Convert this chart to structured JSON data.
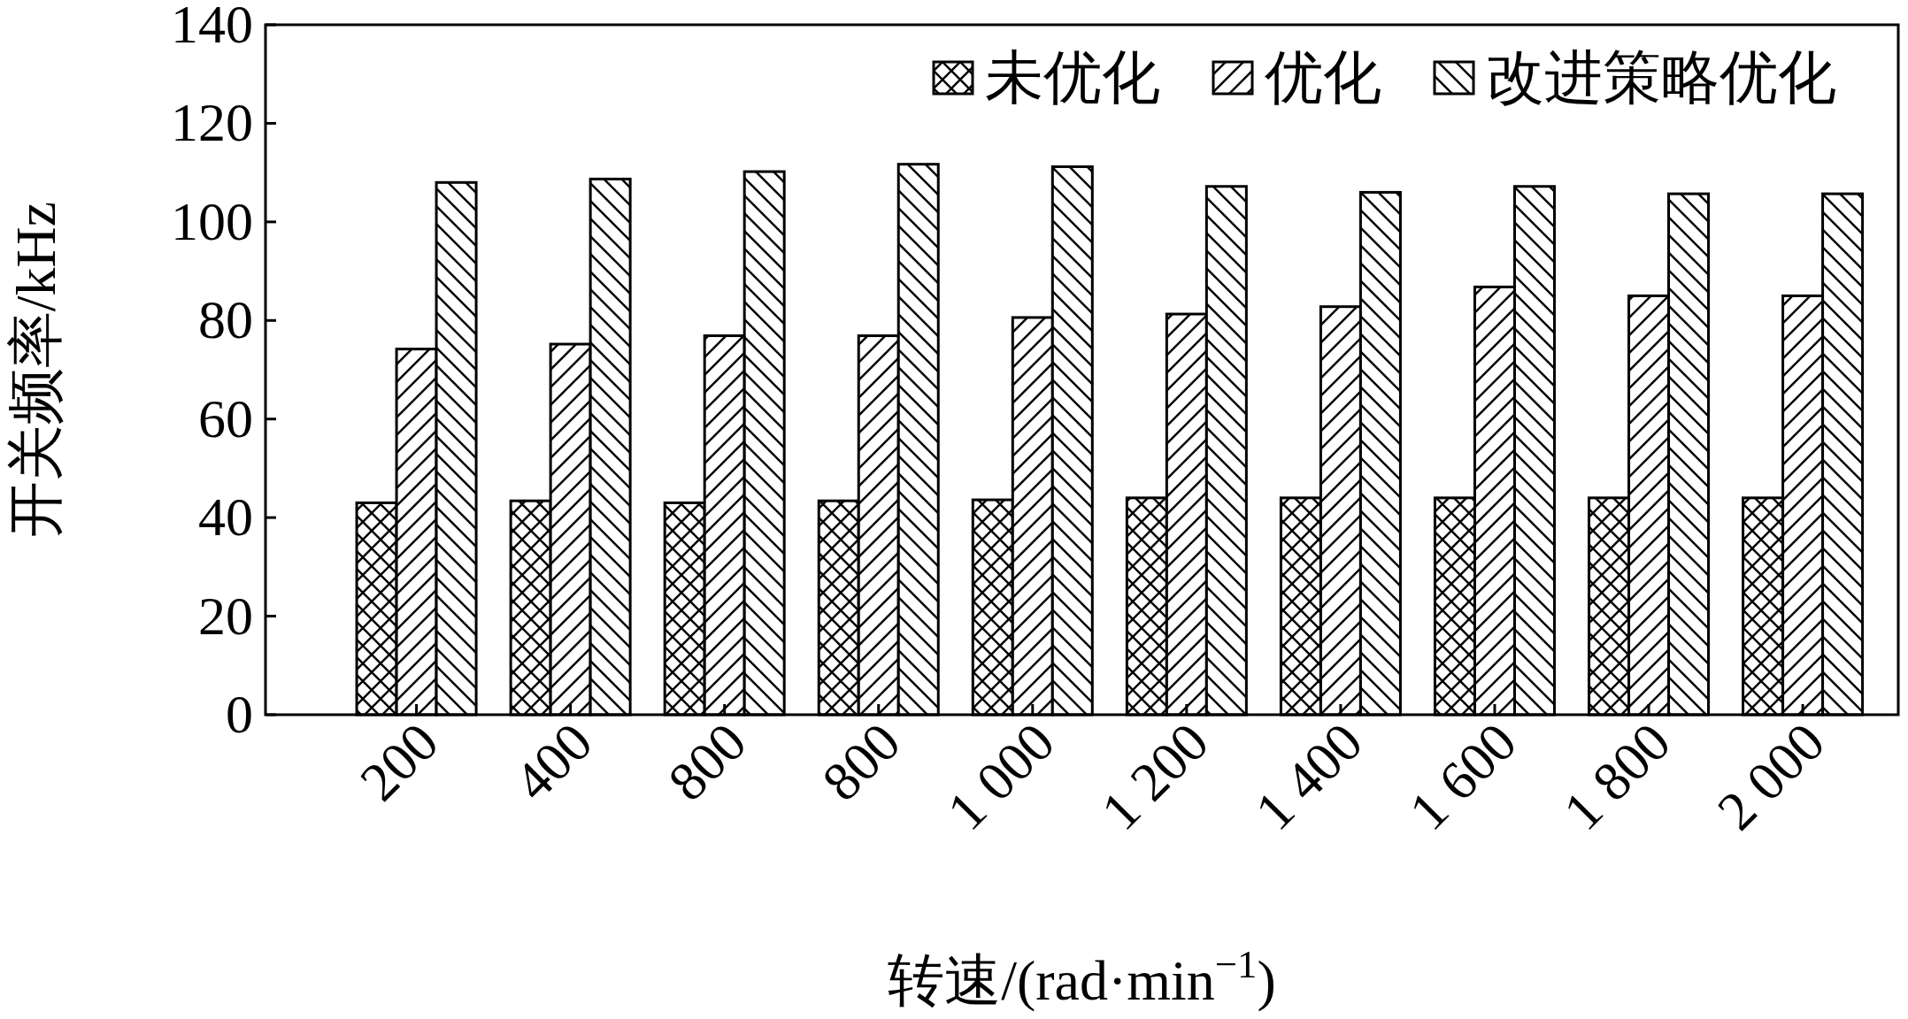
{
  "chart_data": {
    "type": "bar",
    "xlabel": "转速/(rad·min$^{−1}$)",
    "ylabel": "开关频率/kHz",
    "categories": [
      "200",
      "400",
      "800",
      "800",
      "1 000",
      "1 200",
      "1 400",
      "1 600",
      "1 800",
      "2 000"
    ],
    "series": [
      {
        "name": "未优化",
        "color": "#000000",
        "values": [
          43,
          43.4,
          43,
          43.4,
          43.6,
          44,
          44,
          44,
          44,
          44
        ]
      },
      {
        "name": "优化",
        "color": "#000000",
        "values": [
          74.2,
          75.2,
          76.9,
          76.9,
          80.6,
          81.3,
          82.8,
          86.8,
          85,
          85
        ]
      },
      {
        "name": "改进策略优化",
        "color": "#000000",
        "values": [
          108,
          108.7,
          110.2,
          111.7,
          111.2,
          107.2,
          106,
          107.2,
          105.7,
          105.7
        ]
      }
    ],
    "ylim": [
      0,
      140
    ],
    "yticks": [
      0,
      20,
      40,
      60,
      80,
      100,
      120,
      140
    ],
    "legend": "top right",
    "grid": false
  }
}
